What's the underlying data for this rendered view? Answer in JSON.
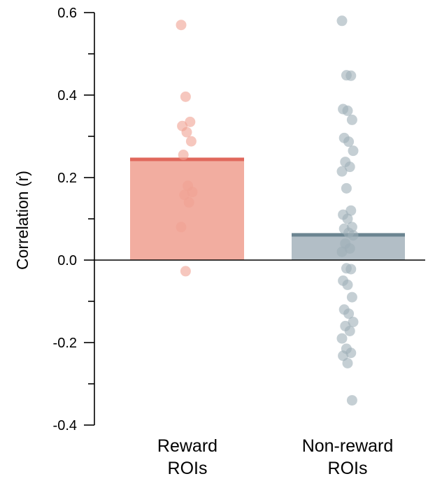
{
  "chart_data": {
    "type": "bar",
    "ylabel": "Correlation (r)",
    "ylim": [
      -0.4,
      0.6
    ],
    "yticks": [
      {
        "value": -0.4,
        "label": "-0.4"
      },
      {
        "value": -0.2,
        "label": "-0.2"
      },
      {
        "value": 0.0,
        "label": "0.0"
      },
      {
        "value": 0.2,
        "label": "0.2"
      },
      {
        "value": 0.4,
        "label": "0.4"
      },
      {
        "value": 0.6,
        "label": "0.6"
      }
    ],
    "categories": [
      {
        "label_line1": "Reward",
        "label_line2": "ROIs"
      },
      {
        "label_line1": "Non-reward",
        "label_line2": "ROIs"
      }
    ],
    "values": [
      0.245,
      0.062
    ],
    "colors": {
      "reward_fill": "#f2ada0",
      "reward_mean": "#e0685c",
      "reward_point": "#f0a293",
      "nonreward_fill": "#b2bec6",
      "nonreward_mean": "#6b8591",
      "nonreward_point": "#9fafb8"
    },
    "points": [
      [
        0.57,
        0.396,
        0.335,
        0.325,
        0.31,
        0.288,
        0.255,
        0.18,
        0.165,
        0.158,
        0.14,
        0.08,
        -0.027
      ],
      [
        0.58,
        0.448,
        0.447,
        0.366,
        0.362,
        0.34,
        0.296,
        0.287,
        0.265,
        0.238,
        0.226,
        0.215,
        0.174,
        0.12,
        0.11,
        0.1,
        0.08,
        0.076,
        0.066,
        0.06,
        0.04,
        0.028,
        0.02,
        -0.02,
        -0.022,
        -0.05,
        -0.06,
        -0.09,
        -0.12,
        -0.13,
        -0.15,
        -0.16,
        -0.172,
        -0.19,
        -0.215,
        -0.225,
        -0.232,
        -0.25,
        -0.34
      ]
    ],
    "grid": false,
    "legend": "none"
  }
}
